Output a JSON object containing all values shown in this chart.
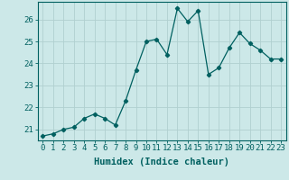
{
  "x": [
    0,
    1,
    2,
    3,
    4,
    5,
    6,
    7,
    8,
    9,
    10,
    11,
    12,
    13,
    14,
    15,
    16,
    17,
    18,
    19,
    20,
    21,
    22,
    23
  ],
  "y": [
    20.7,
    20.8,
    21.0,
    21.1,
    21.5,
    21.7,
    21.5,
    21.2,
    22.3,
    23.7,
    25.0,
    25.1,
    24.4,
    26.5,
    25.9,
    26.4,
    23.5,
    23.8,
    24.7,
    25.4,
    24.9,
    24.6,
    24.2,
    24.2
  ],
  "line_color": "#006060",
  "marker": "D",
  "markersize": 2.2,
  "bg_color": "#cce8e8",
  "grid_color": "#b0d0d0",
  "xlabel": "Humidex (Indice chaleur)",
  "ylim": [
    20.5,
    26.8
  ],
  "yticks": [
    21,
    22,
    23,
    24,
    25,
    26
  ],
  "xticks": [
    0,
    1,
    2,
    3,
    4,
    5,
    6,
    7,
    8,
    9,
    10,
    11,
    12,
    13,
    14,
    15,
    16,
    17,
    18,
    19,
    20,
    21,
    22,
    23
  ],
  "xlabel_fontsize": 7.5,
  "tick_fontsize": 6.5
}
